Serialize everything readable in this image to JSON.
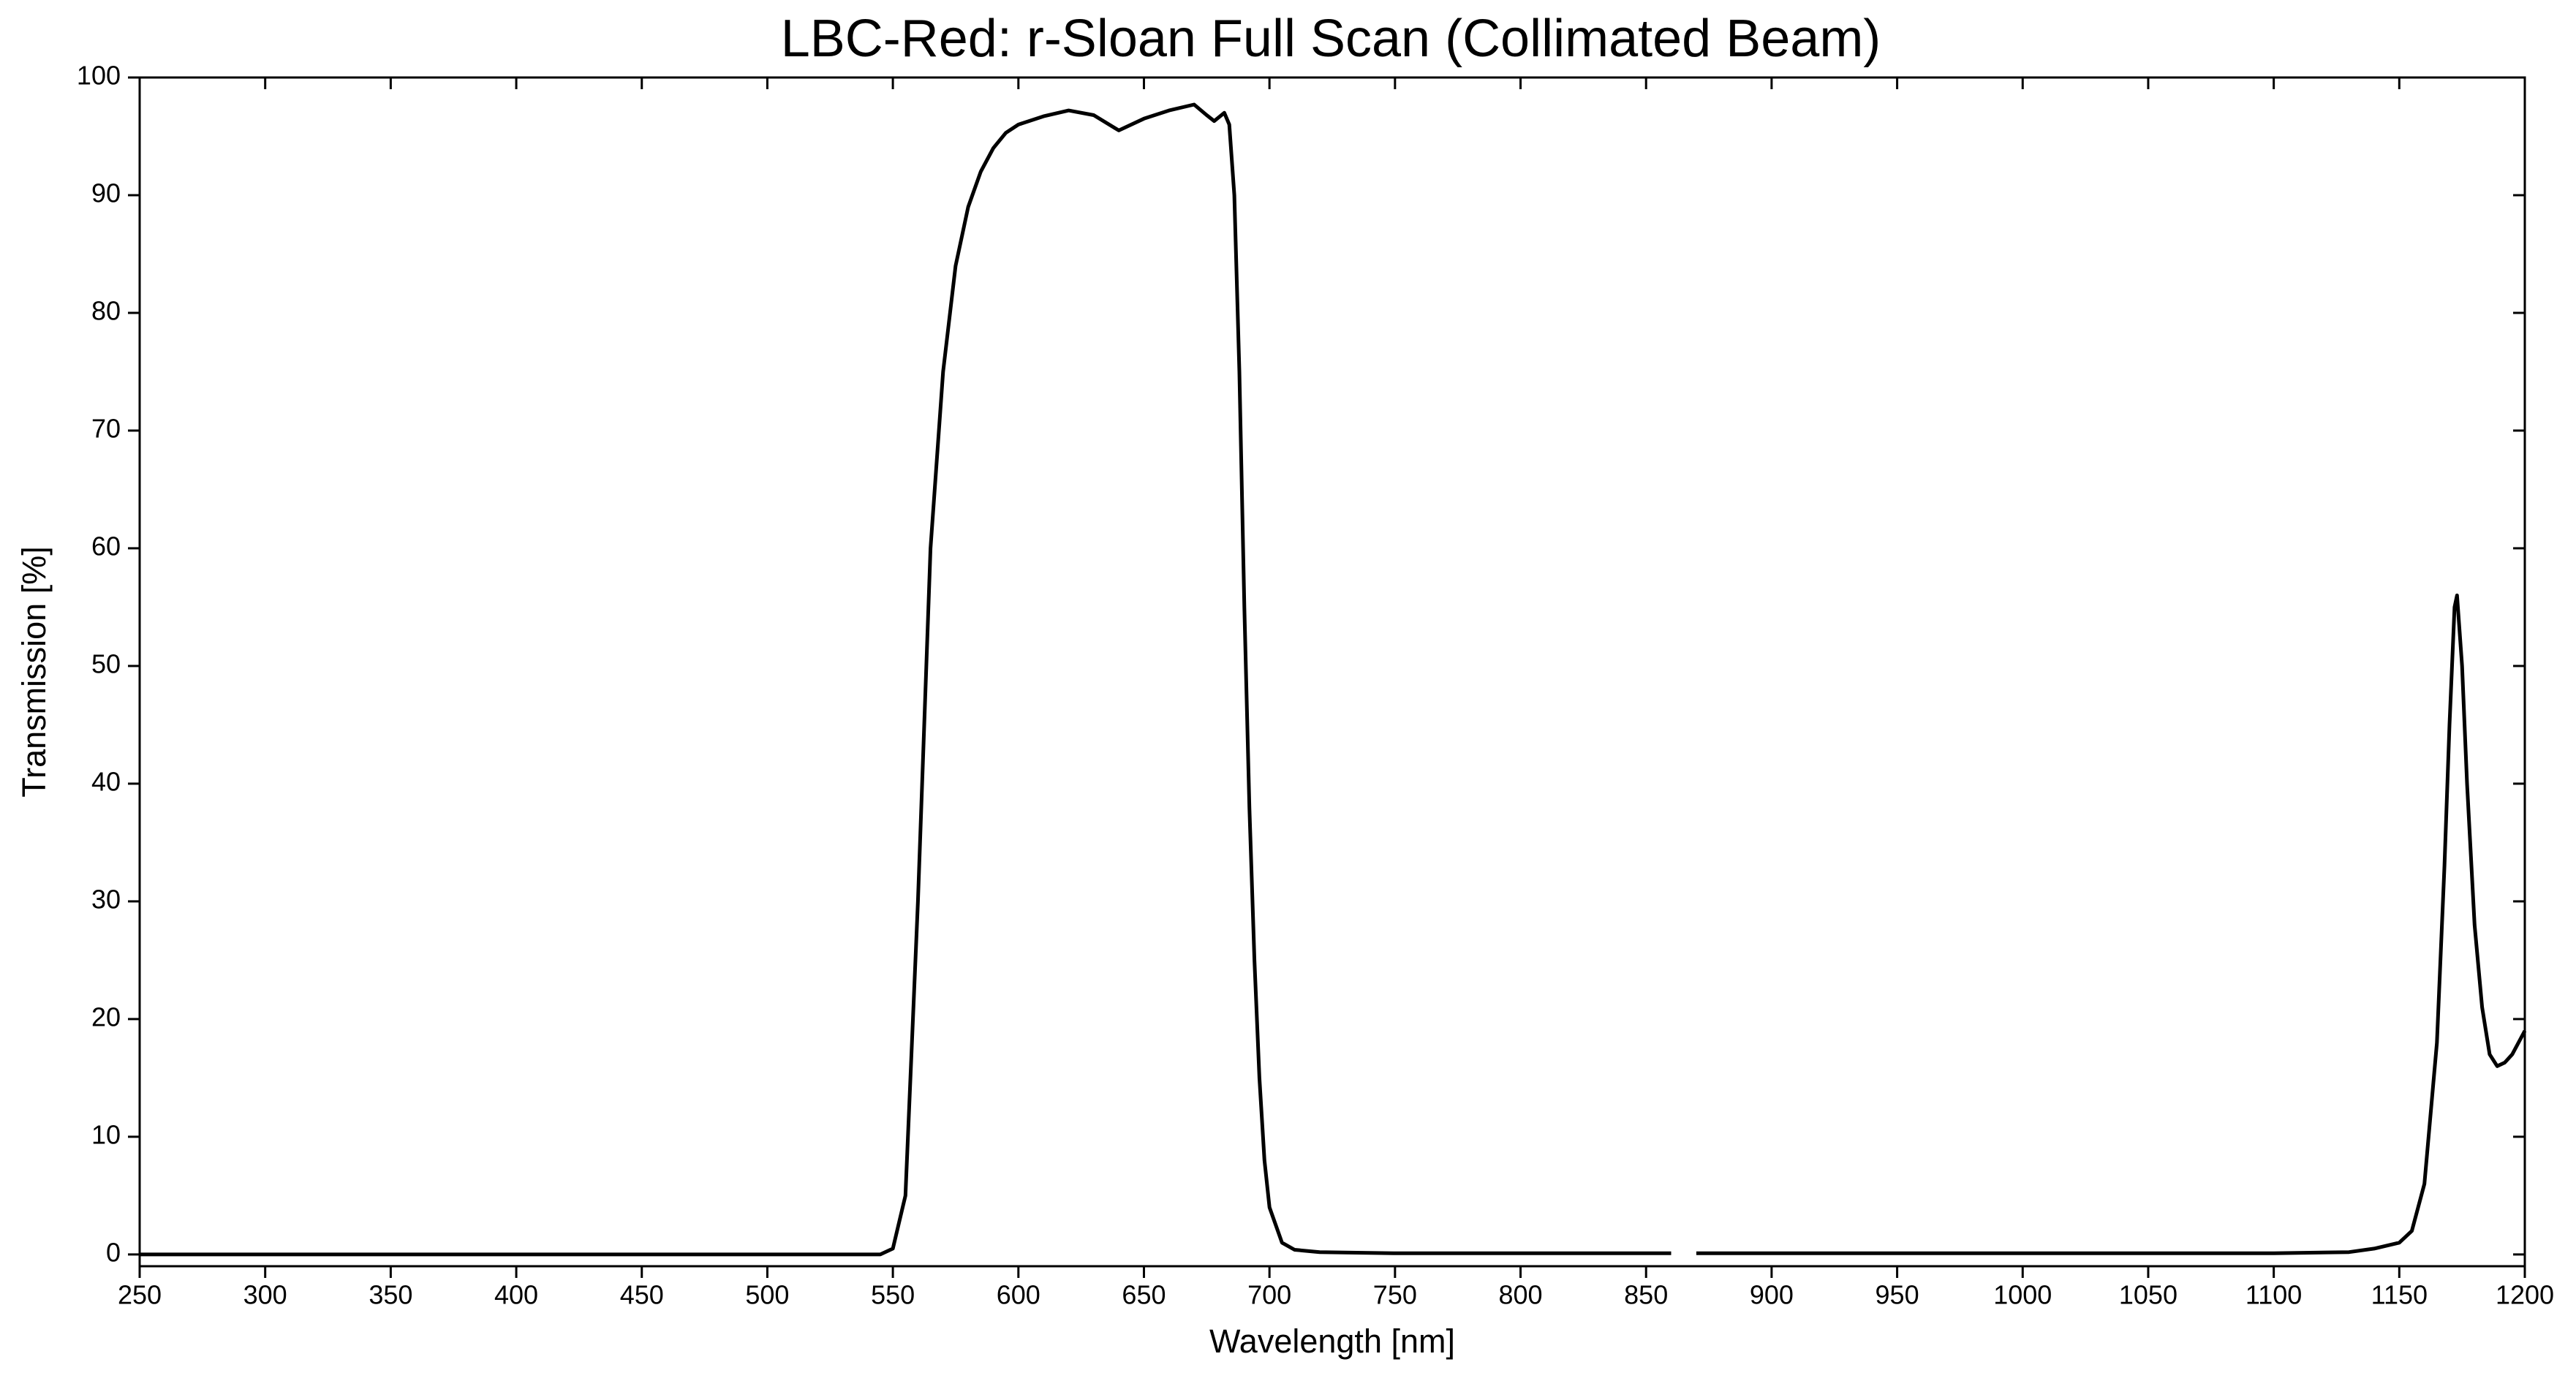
{
  "chart_data": {
    "type": "line",
    "title": "LBC-Red: r-Sloan Full Scan (Collimated Beam)",
    "xlabel": "Wavelength [nm]",
    "ylabel": "Transmission [%]",
    "x": [
      250,
      300,
      350,
      400,
      450,
      500,
      545,
      550,
      555,
      560,
      565,
      570,
      575,
      580,
      585,
      590,
      595,
      600,
      610,
      620,
      630,
      640,
      650,
      660,
      670,
      675,
      678,
      682,
      684,
      686,
      688,
      690,
      692,
      694,
      696,
      698,
      700,
      705,
      710,
      720,
      750,
      800,
      860,
      865,
      870,
      950,
      1050,
      1100,
      1130,
      1140,
      1150,
      1155,
      1160,
      1165,
      1168,
      1170,
      1172,
      1173,
      1175,
      1177,
      1180,
      1183,
      1186,
      1189,
      1192,
      1195,
      1200
    ],
    "series": [
      {
        "name": "r-Sloan",
        "color": "#000000",
        "values": [
          0,
          0,
          0,
          0,
          0,
          0,
          0,
          0.5,
          5,
          30,
          60,
          75,
          84,
          89,
          92,
          94,
          95.3,
          96,
          96.7,
          97.2,
          96.8,
          95.5,
          96.5,
          97.2,
          97.7,
          96.8,
          96.3,
          97,
          96,
          90,
          75,
          55,
          38,
          25,
          15,
          8,
          4,
          1,
          0.4,
          0.2,
          0.1,
          0.1,
          0.1,
          null,
          0.1,
          0.1,
          0.1,
          0.1,
          0.2,
          0.5,
          1,
          2,
          6,
          18,
          33,
          45,
          55,
          56,
          50,
          40,
          28,
          21,
          17,
          16,
          16.3,
          17,
          19
        ]
      }
    ],
    "xlim": [
      250,
      1200
    ],
    "ylim": [
      -1,
      100
    ],
    "xticks": [
      250,
      300,
      350,
      400,
      450,
      500,
      550,
      600,
      650,
      700,
      750,
      800,
      850,
      900,
      950,
      1000,
      1050,
      1100,
      1150,
      1200
    ],
    "yticks": [
      0,
      10,
      20,
      30,
      40,
      50,
      60,
      70,
      80,
      90,
      100
    ]
  }
}
